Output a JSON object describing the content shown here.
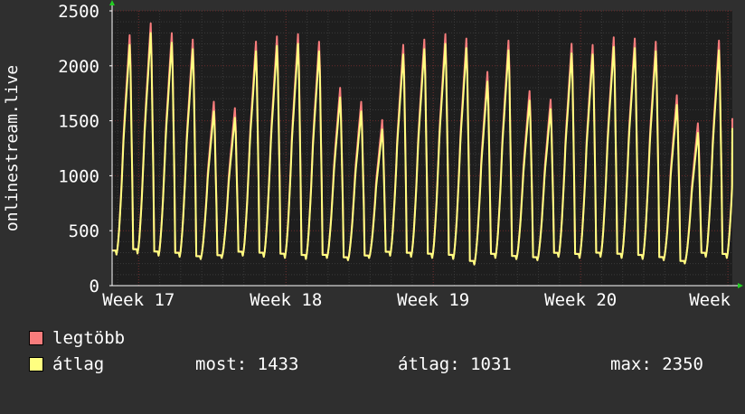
{
  "chart_data": {
    "type": "line",
    "ylabel": "onlinestream.live",
    "ylim": [
      0,
      2500
    ],
    "yticks": [
      "0",
      "500",
      "1000",
      "1500",
      "2000",
      "2500"
    ],
    "x_period_labels": [
      "Week 17",
      "Week 18",
      "Week 19",
      "Week 20",
      "Week"
    ],
    "x_period_positions": [
      17,
      18,
      19,
      20,
      21
    ],
    "x_range": [
      16.82,
      21.03
    ],
    "grid": true,
    "legend_placement": "bottom",
    "daily_peak": [
      2240,
      2350,
      2260,
      2200,
      1620,
      1560,
      2180,
      2230,
      2250,
      2180,
      1750,
      1620,
      1450,
      2150,
      2200,
      2250,
      2210,
      1900,
      2190,
      1720,
      1640,
      2160,
      2150,
      2220,
      2210,
      2180,
      1680,
      1420,
      2190,
      2140,
      2220,
      2180
    ],
    "daily_low": [
      280,
      290,
      270,
      260,
      240,
      250,
      270,
      260,
      250,
      240,
      250,
      230,
      250,
      270,
      260,
      250,
      240,
      190,
      250,
      240,
      230,
      260,
      250,
      260,
      250,
      240,
      230,
      200,
      260,
      250,
      260,
      270
    ],
    "series": [
      {
        "name": "legtöbb",
        "color": "#f87c7c",
        "offset": 90
      },
      {
        "name": "átlag",
        "color": "#ffff80",
        "offset": 0
      }
    ],
    "last_value": 1433
  },
  "legend": {
    "items": [
      {
        "label": "legtöbb",
        "color": "#f87c7c"
      },
      {
        "label": "átlag",
        "color": "#ffff80"
      }
    ]
  },
  "stats": {
    "most": "most: 1433",
    "atlag": "átlag: 1031",
    "max": "max: 2350"
  }
}
